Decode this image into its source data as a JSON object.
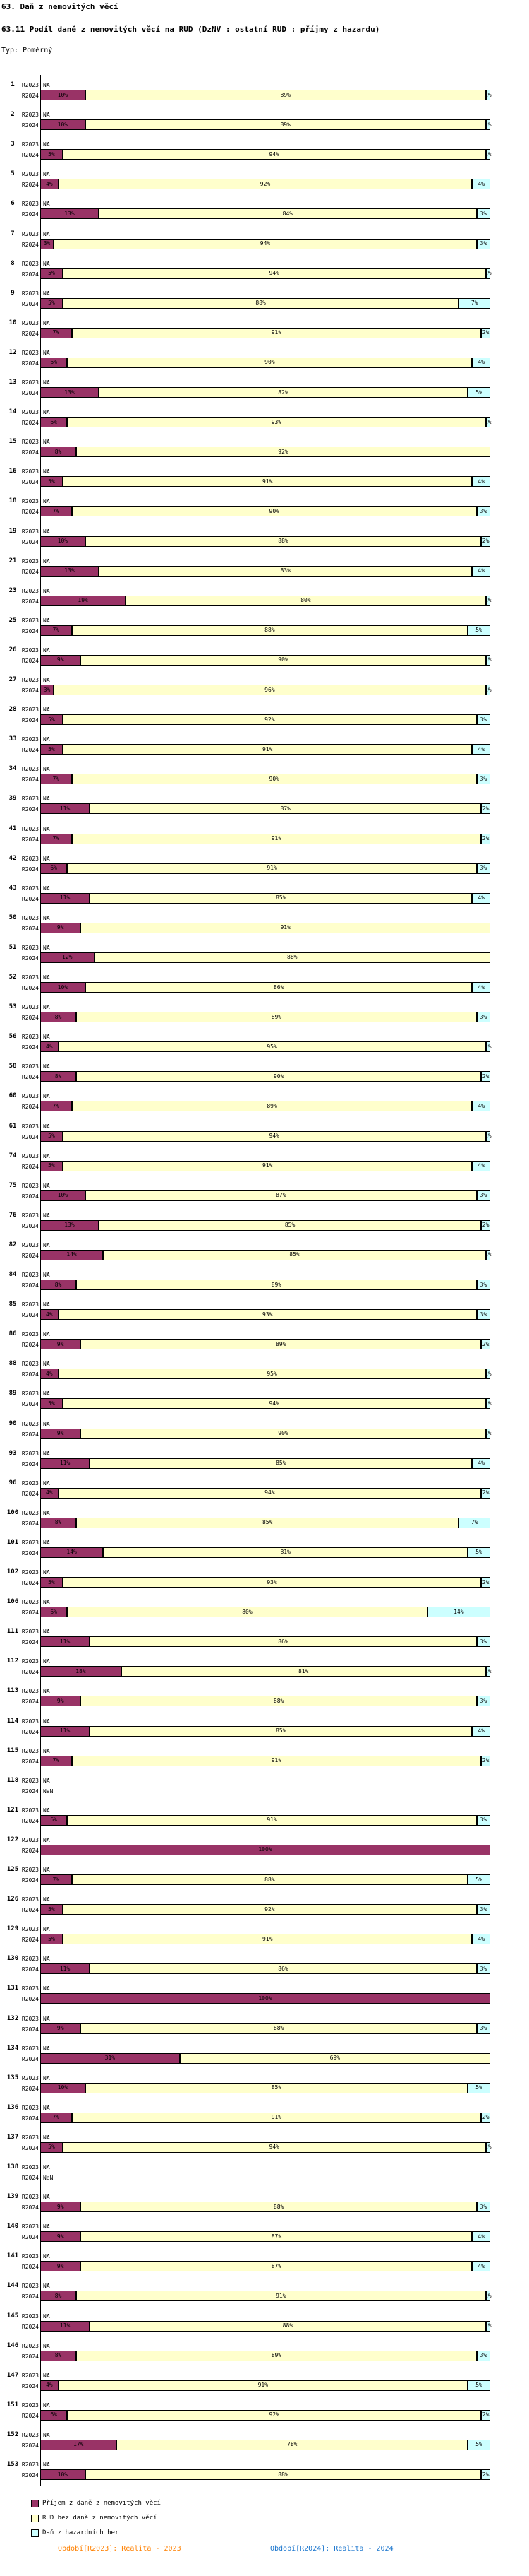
{
  "colors": {
    "dznv": "#993366",
    "rud": "#FFFFCC",
    "hazard": "#CCFFFF",
    "axis": "#000000",
    "footer_2023": "#FF8000",
    "footer_2024": "#1874CD"
  },
  "legend": {
    "items": [
      {
        "key": "dznv",
        "label": "Příjem z daně z nemovitých věcí"
      },
      {
        "key": "rud",
        "label": "RUD bez daně z nemovitých věcí"
      },
      {
        "key": "hazard",
        "label": "Daň z hazardních her"
      }
    ]
  },
  "footer": {
    "r2023": "Období[R2023]: Realita - 2023",
    "r2024": "Období[R2024]: Realita - 2024"
  },
  "chart_data": {
    "type": "bar",
    "subtype": "horizontal-stacked-100pct",
    "title": "63. Daň z nemovitých věcí",
    "subtitle": "63.11 Podíl daně z nemovitých věcí na RUD (DzNV : ostatní RUD : příjmy z hazardu)",
    "type_note": "Typ: Poměrný",
    "unit": "%",
    "xlim": [
      0,
      100
    ],
    "grid": false,
    "legend_position": "bottom-left",
    "periods": [
      "R2023",
      "R2024"
    ],
    "series_names": [
      "Příjem z daně z nemovitých věcí",
      "RUD bez daně z nemovitých věcí",
      "Daň z hazardních her"
    ],
    "segment_order": [
      "dznv",
      "rud",
      "hazard"
    ],
    "rows": [
      {
        "id": "1",
        "r2023": "NA",
        "r2024": [
          10,
          89,
          1
        ]
      },
      {
        "id": "2",
        "r2023": "NA",
        "r2024": [
          10,
          89,
          1
        ]
      },
      {
        "id": "3",
        "r2023": "NA",
        "r2024": [
          5,
          94,
          1
        ]
      },
      {
        "id": "5",
        "r2023": "NA",
        "r2024": [
          4,
          92,
          4
        ]
      },
      {
        "id": "6",
        "r2023": "NA",
        "r2024": [
          13,
          84,
          3
        ]
      },
      {
        "id": "7",
        "r2023": "NA",
        "r2024": [
          3,
          94,
          3
        ]
      },
      {
        "id": "8",
        "r2023": "NA",
        "r2024": [
          5,
          94,
          1
        ]
      },
      {
        "id": "9",
        "r2023": "NA",
        "r2024": [
          5,
          88,
          7
        ]
      },
      {
        "id": "10",
        "r2023": "NA",
        "r2024": [
          7,
          91,
          2
        ]
      },
      {
        "id": "12",
        "r2023": "NA",
        "r2024": [
          6,
          90,
          4
        ]
      },
      {
        "id": "13",
        "r2023": "NA",
        "r2024": [
          13,
          82,
          5
        ]
      },
      {
        "id": "14",
        "r2023": "NA",
        "r2024": [
          6,
          93,
          1
        ]
      },
      {
        "id": "15",
        "r2023": "NA",
        "r2024": [
          8,
          92,
          null
        ]
      },
      {
        "id": "16",
        "r2023": "NA",
        "r2024": [
          5,
          91,
          4
        ]
      },
      {
        "id": "18",
        "r2023": "NA",
        "r2024": [
          7,
          90,
          3
        ]
      },
      {
        "id": "19",
        "r2023": "NA",
        "r2024": [
          10,
          88,
          2
        ]
      },
      {
        "id": "21",
        "r2023": "NA",
        "r2024": [
          13,
          83,
          4
        ]
      },
      {
        "id": "23",
        "r2023": "NA",
        "r2024": [
          19,
          80,
          1
        ]
      },
      {
        "id": "25",
        "r2023": "NA",
        "r2024": [
          7,
          88,
          5
        ]
      },
      {
        "id": "26",
        "r2023": "NA",
        "r2024": [
          9,
          90,
          1
        ]
      },
      {
        "id": "27",
        "r2023": "NA",
        "r2024": [
          3,
          96,
          1
        ]
      },
      {
        "id": "28",
        "r2023": "NA",
        "r2024": [
          5,
          92,
          3
        ]
      },
      {
        "id": "33",
        "r2023": "NA",
        "r2024": [
          5,
          91,
          4
        ]
      },
      {
        "id": "34",
        "r2023": "NA",
        "r2024": [
          7,
          90,
          3
        ]
      },
      {
        "id": "39",
        "r2023": "NA",
        "r2024": [
          11,
          87,
          2
        ]
      },
      {
        "id": "41",
        "r2023": "NA",
        "r2024": [
          7,
          91,
          2
        ]
      },
      {
        "id": "42",
        "r2023": "NA",
        "r2024": [
          6,
          91,
          3
        ]
      },
      {
        "id": "43",
        "r2023": "NA",
        "r2024": [
          11,
          85,
          4
        ]
      },
      {
        "id": "50",
        "r2023": "NA",
        "r2024": [
          9,
          91,
          null
        ]
      },
      {
        "id": "51",
        "r2023": "NA",
        "r2024": [
          12,
          88,
          null
        ]
      },
      {
        "id": "52",
        "r2023": "NA",
        "r2024": [
          10,
          86,
          4
        ]
      },
      {
        "id": "53",
        "r2023": "NA",
        "r2024": [
          8,
          89,
          3
        ]
      },
      {
        "id": "56",
        "r2023": "NA",
        "r2024": [
          4,
          95,
          1
        ]
      },
      {
        "id": "58",
        "r2023": "NA",
        "r2024": [
          8,
          90,
          2
        ]
      },
      {
        "id": "60",
        "r2023": "NA",
        "r2024": [
          7,
          89,
          4
        ]
      },
      {
        "id": "61",
        "r2023": "NA",
        "r2024": [
          5,
          94,
          1
        ]
      },
      {
        "id": "74",
        "r2023": "NA",
        "r2024": [
          5,
          91,
          4
        ]
      },
      {
        "id": "75",
        "r2023": "NA",
        "r2024": [
          10,
          87,
          3
        ]
      },
      {
        "id": "76",
        "r2023": "NA",
        "r2024": [
          13,
          85,
          2
        ]
      },
      {
        "id": "82",
        "r2023": "NA",
        "r2024": [
          14,
          85,
          1
        ]
      },
      {
        "id": "84",
        "r2023": "NA",
        "r2024": [
          8,
          89,
          3
        ]
      },
      {
        "id": "85",
        "r2023": "NA",
        "r2024": [
          4,
          93,
          3
        ]
      },
      {
        "id": "86",
        "r2023": "NA",
        "r2024": [
          9,
          89,
          2
        ]
      },
      {
        "id": "88",
        "r2023": "NA",
        "r2024": [
          4,
          95,
          1
        ]
      },
      {
        "id": "89",
        "r2023": "NA",
        "r2024": [
          5,
          94,
          1
        ]
      },
      {
        "id": "90",
        "r2023": "NA",
        "r2024": [
          9,
          90,
          1
        ]
      },
      {
        "id": "93",
        "r2023": "NA",
        "r2024": [
          11,
          85,
          4
        ]
      },
      {
        "id": "96",
        "r2023": "NA",
        "r2024": [
          4,
          94,
          2
        ]
      },
      {
        "id": "100",
        "r2023": "NA",
        "r2024": [
          8,
          85,
          7
        ]
      },
      {
        "id": "101",
        "r2023": "NA",
        "r2024": [
          14,
          81,
          5
        ]
      },
      {
        "id": "102",
        "r2023": "NA",
        "r2024": [
          5,
          93,
          2
        ]
      },
      {
        "id": "106",
        "r2023": "NA",
        "r2024": [
          6,
          80,
          14
        ]
      },
      {
        "id": "111",
        "r2023": "NA",
        "r2024": [
          11,
          86,
          3
        ]
      },
      {
        "id": "112",
        "r2023": "NA",
        "r2024": [
          18,
          81,
          1
        ]
      },
      {
        "id": "113",
        "r2023": "NA",
        "r2024": [
          9,
          88,
          3
        ]
      },
      {
        "id": "114",
        "r2023": "NA",
        "r2024": [
          11,
          85,
          4
        ]
      },
      {
        "id": "115",
        "r2023": "NA",
        "r2024": [
          7,
          91,
          2
        ]
      },
      {
        "id": "118",
        "r2023": "NA",
        "r2024": "NaN"
      },
      {
        "id": "121",
        "r2023": "NA",
        "r2024": [
          6,
          91,
          3
        ]
      },
      {
        "id": "122",
        "r2023": "NA",
        "r2024": [
          100,
          null,
          null
        ]
      },
      {
        "id": "125",
        "r2023": "NA",
        "r2024": [
          7,
          88,
          5
        ]
      },
      {
        "id": "126",
        "r2023": "NA",
        "r2024": [
          5,
          92,
          3
        ]
      },
      {
        "id": "129",
        "r2023": "NA",
        "r2024": [
          5,
          91,
          4
        ]
      },
      {
        "id": "130",
        "r2023": "NA",
        "r2024": [
          11,
          86,
          3
        ]
      },
      {
        "id": "131",
        "r2023": "NA",
        "r2024": [
          100,
          null,
          null
        ]
      },
      {
        "id": "132",
        "r2023": "NA",
        "r2024": [
          9,
          88,
          3
        ]
      },
      {
        "id": "134",
        "r2023": "NA",
        "r2024": [
          31,
          69,
          null
        ]
      },
      {
        "id": "135",
        "r2023": "NA",
        "r2024": [
          10,
          85,
          5
        ]
      },
      {
        "id": "136",
        "r2023": "NA",
        "r2024": [
          7,
          91,
          2
        ]
      },
      {
        "id": "137",
        "r2023": "NA",
        "r2024": [
          5,
          94,
          1
        ]
      },
      {
        "id": "138",
        "r2023": "NA",
        "r2024": "NaN"
      },
      {
        "id": "139",
        "r2023": "NA",
        "r2024": [
          9,
          88,
          3
        ]
      },
      {
        "id": "140",
        "r2023": "NA",
        "r2024": [
          9,
          87,
          4
        ]
      },
      {
        "id": "141",
        "r2023": "NA",
        "r2024": [
          9,
          87,
          4
        ]
      },
      {
        "id": "144",
        "r2023": "NA",
        "r2024": [
          8,
          91,
          1
        ]
      },
      {
        "id": "145",
        "r2023": "NA",
        "r2024": [
          11,
          88,
          1
        ]
      },
      {
        "id": "146",
        "r2023": "NA",
        "r2024": [
          8,
          89,
          3
        ]
      },
      {
        "id": "147",
        "r2023": "NA",
        "r2024": [
          4,
          91,
          5
        ]
      },
      {
        "id": "151",
        "r2023": "NA",
        "r2024": [
          6,
          92,
          2
        ]
      },
      {
        "id": "152",
        "r2023": "NA",
        "r2024": [
          17,
          78,
          5
        ]
      },
      {
        "id": "153",
        "r2023": "NA",
        "r2024": [
          10,
          88,
          2
        ]
      }
    ]
  }
}
